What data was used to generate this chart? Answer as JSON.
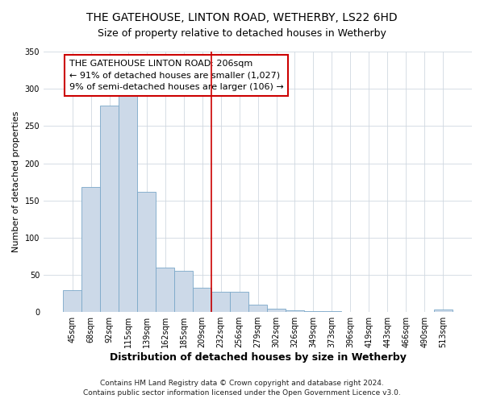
{
  "title": "THE GATEHOUSE, LINTON ROAD, WETHERBY, LS22 6HD",
  "subtitle": "Size of property relative to detached houses in Wetherby",
  "xlabel": "Distribution of detached houses by size in Wetherby",
  "ylabel": "Number of detached properties",
  "bar_labels": [
    "45sqm",
    "68sqm",
    "92sqm",
    "115sqm",
    "139sqm",
    "162sqm",
    "185sqm",
    "209sqm",
    "232sqm",
    "256sqm",
    "279sqm",
    "302sqm",
    "326sqm",
    "349sqm",
    "373sqm",
    "396sqm",
    "419sqm",
    "443sqm",
    "466sqm",
    "490sqm",
    "513sqm"
  ],
  "bar_values": [
    29,
    168,
    277,
    290,
    162,
    60,
    55,
    33,
    27,
    27,
    10,
    5,
    2,
    1,
    1,
    0,
    0,
    0,
    0,
    0,
    3
  ],
  "bar_color": "#ccd9e8",
  "bar_edgecolor": "#7aa8c8",
  "vline_index": 7.5,
  "vline_color": "#cc0000",
  "annotation_text": "THE GATEHOUSE LINTON ROAD: 206sqm\n← 91% of detached houses are smaller (1,027)\n9% of semi-detached houses are larger (106) →",
  "annotation_box_edgecolor": "#cc0000",
  "annotation_box_facecolor": "#ffffff",
  "ylim": [
    0,
    350
  ],
  "yticks": [
    0,
    50,
    100,
    150,
    200,
    250,
    300,
    350
  ],
  "footer_line1": "Contains HM Land Registry data © Crown copyright and database right 2024.",
  "footer_line2": "Contains public sector information licensed under the Open Government Licence v3.0.",
  "bg_color": "#ffffff",
  "plot_bg_color": "#ffffff",
  "grid_color": "#d0d8e0",
  "title_fontsize": 10,
  "xlabel_fontsize": 9,
  "ylabel_fontsize": 8,
  "tick_fontsize": 7,
  "annotation_fontsize": 8,
  "footer_fontsize": 6.5
}
